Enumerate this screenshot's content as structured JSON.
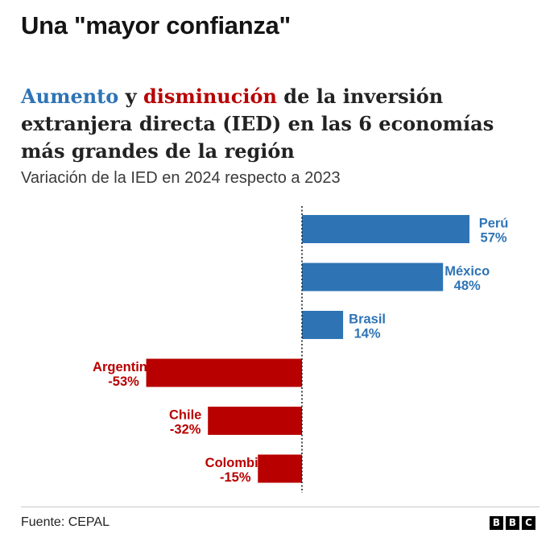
{
  "headline": "Una \"mayor confianza\"",
  "title": {
    "highlight_up": "Aumento",
    "connector": " y ",
    "highlight_down": "disminución",
    "rest": " de la inversión extranjera directa (IED) en las 6 economías más grandes de la región"
  },
  "subtitle": "Variación de la IED en 2024 respecto a 2023",
  "colors": {
    "increase": "#2e74b5",
    "decrease": "#b80000",
    "increase_label": "#2e74b5",
    "decrease_label": "#b80000"
  },
  "chart_data": {
    "type": "bar",
    "orientation": "horizontal",
    "title": "Aumento y disminución de la inversión extranjera directa (IED) en las 6 economías más grandes de la región",
    "subtitle": "Variación de la IED en 2024 respecto a 2023",
    "unit": "%",
    "categories": [
      "Perú",
      "México",
      "Brasil",
      "Argentina",
      "Chile",
      "Colombia"
    ],
    "values": [
      57,
      48,
      14,
      -53,
      -32,
      -15
    ],
    "value_labels": [
      "57%",
      "48%",
      "14%",
      "-53%",
      "-32%",
      "-15%"
    ],
    "zero_line": "dotted",
    "xlim": [
      -53,
      57
    ]
  },
  "footer": {
    "source": "Fuente: CEPAL",
    "logo_letters": [
      "B",
      "B",
      "C"
    ]
  }
}
